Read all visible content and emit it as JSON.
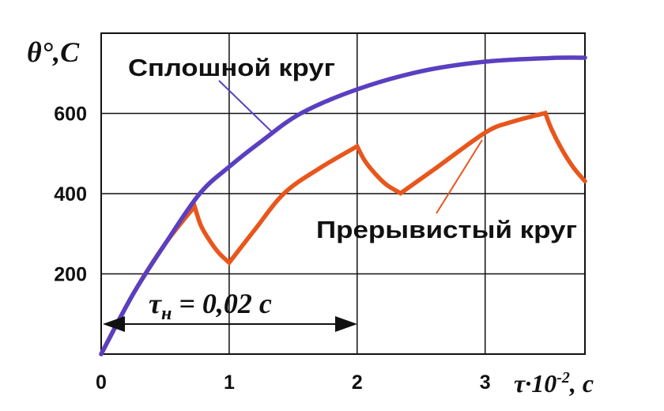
{
  "chart_data": {
    "type": "line",
    "ylabel": "θ°,C",
    "xlabel": "τ·10",
    "xlabel_sup": "-2",
    "xlabel_unit": ", с",
    "xlim": [
      0,
      3.78
    ],
    "ylim": [
      0,
      800
    ],
    "x_ticks": [
      "0",
      "1",
      "2",
      "3"
    ],
    "y_ticks": [
      "200",
      "400",
      "600"
    ],
    "grid": true,
    "series": [
      {
        "name": "Сплошной круг",
        "color": "#5a3fc0",
        "points": [
          [
            0,
            0
          ],
          [
            0.25,
            150
          ],
          [
            0.5,
            275
          ],
          [
            0.77,
            400
          ],
          [
            1,
            467
          ],
          [
            1.25,
            530
          ],
          [
            1.56,
            600
          ],
          [
            2,
            660
          ],
          [
            2.5,
            705
          ],
          [
            3,
            729
          ],
          [
            3.5,
            738
          ],
          [
            3.78,
            739
          ]
        ]
      },
      {
        "name": "Прерывистый круг",
        "color": "#e8561c",
        "points": [
          [
            0,
            0
          ],
          [
            0.25,
            150
          ],
          [
            0.5,
            275
          ],
          [
            0.73,
            368
          ],
          [
            0.78,
            320
          ],
          [
            0.85,
            282
          ],
          [
            0.92,
            252
          ],
          [
            1.0,
            228
          ],
          [
            1.2,
            310
          ],
          [
            1.43,
            401
          ],
          [
            1.7,
            462
          ],
          [
            2.0,
            518
          ],
          [
            2.06,
            482
          ],
          [
            2.14,
            450
          ],
          [
            2.23,
            422
          ],
          [
            2.34,
            401
          ],
          [
            2.6,
            460
          ],
          [
            3.0,
            552
          ],
          [
            3.2,
            578
          ],
          [
            3.47,
            601
          ],
          [
            3.52,
            560
          ],
          [
            3.6,
            510
          ],
          [
            3.69,
            465
          ],
          [
            3.78,
            431
          ]
        ]
      }
    ],
    "annotations": {
      "interval_label": "τ",
      "interval_sub": "н",
      "interval_value": " = 0,02 с",
      "interval_range": [
        0,
        2
      ]
    }
  }
}
